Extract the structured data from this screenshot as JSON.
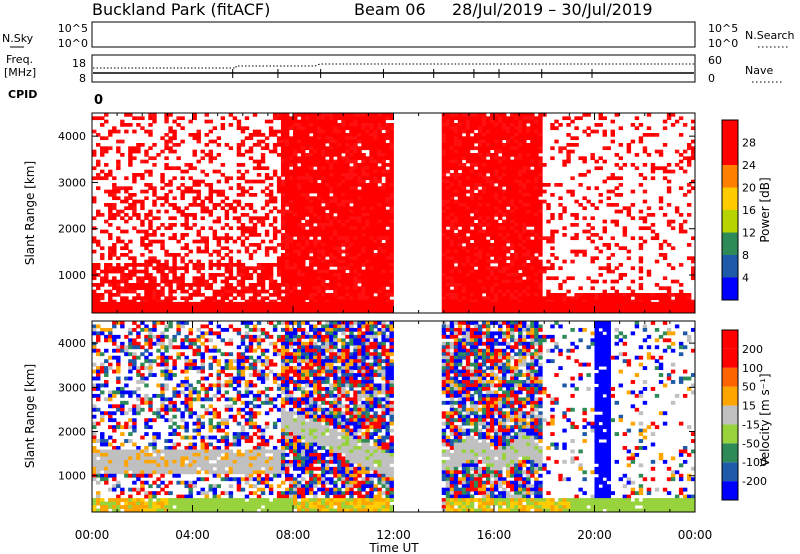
{
  "header": {
    "station": "Buckland Park (fitACF)",
    "beam": "Beam 06",
    "dates": "28/Jul/2019 – 30/Jul/2019"
  },
  "panels": {
    "nsky_label": "N.Sky",
    "nsky_ticks": [
      "10^5",
      "10^0"
    ],
    "nsearch_label": "N.Search",
    "freq_label_1": "Freq.",
    "freq_label_2": "[MHz]",
    "freq_ticks": [
      "18",
      "8"
    ],
    "nave_ticks": [
      "60",
      "0"
    ],
    "nave_label": "Nave",
    "cpid_label": "CPID",
    "cpid_value": "0"
  },
  "chart_data": [
    {
      "type": "heatmap",
      "name": "power",
      "ylabel": "Slant Range [km]",
      "xlabel": "",
      "x_ticks": [
        "00:00",
        "04:00",
        "08:00",
        "12:00",
        "16:00",
        "20:00",
        "00:00"
      ],
      "y_ticks": [
        "1000",
        "2000",
        "3000",
        "4000"
      ],
      "xlim_hours": [
        0,
        24
      ],
      "ylim_km": [
        180,
        4500
      ],
      "colorbar": {
        "label": "Power [dB]",
        "tick_labels": [
          "4",
          "8",
          "12",
          "16",
          "20",
          "24",
          "28"
        ],
        "colors": [
          "#0000ff",
          "#1e5aa8",
          "#2e8b57",
          "#b8d400",
          "#ffcc00",
          "#ff7f00",
          "#ff0000",
          "#ff0000"
        ]
      },
      "data_gap_hours": [
        12.0,
        14.0
      ],
      "regions": [
        {
          "from_hour": 0.0,
          "to_hour": 7.6,
          "density": 0.32,
          "dense_below_km": 1250,
          "dense_density": 0.72
        },
        {
          "from_hour": 7.6,
          "to_hour": 12.0,
          "density": 0.95,
          "dense_below_km": 4500,
          "dense_density": 0.95
        },
        {
          "from_hour": 14.0,
          "to_hour": 18.0,
          "density": 0.96,
          "dense_below_km": 4500,
          "dense_density": 0.96
        },
        {
          "from_hour": 18.0,
          "to_hour": 24.0,
          "density": 0.2,
          "dense_below_km": 600,
          "dense_density": 0.9
        }
      ]
    },
    {
      "type": "heatmap",
      "name": "velocity",
      "ylabel": "Slant Range [km]",
      "xlabel": "Time UT",
      "x_ticks": [
        "00:00",
        "04:00",
        "08:00",
        "12:00",
        "16:00",
        "20:00",
        "00:00"
      ],
      "y_ticks": [
        "1000",
        "2000",
        "3000",
        "4000"
      ],
      "xlim_hours": [
        0,
        24
      ],
      "ylim_km": [
        180,
        4500
      ],
      "colorbar": {
        "label": "Velocity [m s⁻¹]",
        "tick_labels": [
          "200",
          "100",
          "50",
          "15",
          "-15",
          "-50",
          "-100",
          "-200"
        ],
        "colors": [
          "#0000ff",
          "#1e5aa8",
          "#2e8b57",
          "#98d23c",
          "#c0c0c0",
          "#ffa500",
          "#ff6400",
          "#ff0000",
          "#ff0000"
        ]
      },
      "data_gap_hours": [
        12.0,
        14.0
      ]
    }
  ]
}
